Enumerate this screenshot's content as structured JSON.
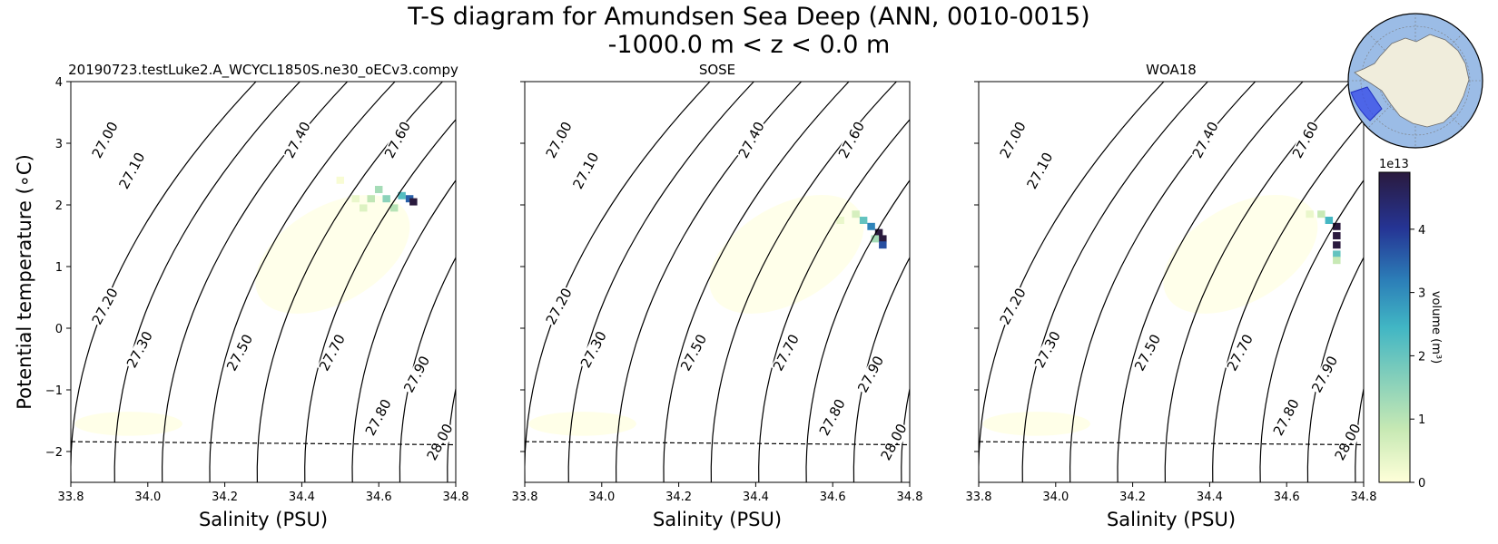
{
  "figure": {
    "title_line1": "T-S diagram for Amundsen Sea Deep (ANN, 0010-0015)",
    "title_line2": "-1000.0 m < z < 0.0 m"
  },
  "chart_data": [
    {
      "type": "heatmap",
      "title": "20190723.testLuke2.A_WCYCL1850S.ne30_oECv3.compy",
      "xlabel": "Salinity (PSU)",
      "ylabel": "Potential temperature (∘C)",
      "xlim": [
        33.8,
        34.8
      ],
      "ylim": [
        -2.5,
        4
      ],
      "xticks": [
        33.8,
        34.0,
        34.2,
        34.4,
        34.6,
        34.8
      ],
      "yticks": [
        -2,
        -1,
        0,
        1,
        2,
        3,
        4
      ],
      "freezing_line": {
        "style": "dashed",
        "points": [
          [
            33.8,
            -1.84
          ],
          [
            34.8,
            -1.89
          ]
        ]
      },
      "density_contour_labels": [
        "27.00",
        "27.10",
        "27.20",
        "27.30",
        "27.40",
        "27.50",
        "27.60",
        "27.70",
        "27.80",
        "27.90",
        "28.00"
      ],
      "cells": [
        {
          "s": 34.54,
          "t": 2.1,
          "v": 3000000000000.0
        },
        {
          "s": 34.58,
          "t": 2.1,
          "v": 9000000000000.0
        },
        {
          "s": 34.62,
          "t": 2.1,
          "v": 15000000000000.0
        },
        {
          "s": 34.66,
          "t": 2.15,
          "v": 22000000000000.0
        },
        {
          "s": 34.68,
          "t": 2.1,
          "v": 36000000000000.0
        },
        {
          "s": 34.69,
          "t": 2.05,
          "v": 49000000000000.0
        },
        {
          "s": 34.6,
          "t": 2.25,
          "v": 12000000000000.0
        },
        {
          "s": 34.56,
          "t": 1.95,
          "v": 5000000000000.0
        },
        {
          "s": 34.64,
          "t": 1.95,
          "v": 10000000000000.0
        },
        {
          "s": 34.5,
          "t": 2.4,
          "v": 1000000000000.0
        }
      ]
    },
    {
      "type": "heatmap",
      "title": "SOSE",
      "xlabel": "Salinity (PSU)",
      "ylabel": "",
      "xlim": [
        33.8,
        34.8
      ],
      "ylim": [
        -2.5,
        4
      ],
      "xticks": [
        33.8,
        34.0,
        34.2,
        34.4,
        34.6,
        34.8
      ],
      "yticks": [
        -2,
        -1,
        0,
        1,
        2,
        3,
        4
      ],
      "freezing_line": {
        "style": "dashed",
        "points": [
          [
            33.8,
            -1.84
          ],
          [
            34.8,
            -1.89
          ]
        ]
      },
      "density_contour_labels": [
        "27.00",
        "27.10",
        "27.20",
        "27.30",
        "27.40",
        "27.50",
        "27.60",
        "27.70",
        "27.80",
        "27.90",
        "28.00"
      ],
      "cells": [
        {
          "s": 34.66,
          "t": 1.85,
          "v": 6000000000000.0
        },
        {
          "s": 34.68,
          "t": 1.75,
          "v": 20000000000000.0
        },
        {
          "s": 34.7,
          "t": 1.65,
          "v": 32000000000000.0
        },
        {
          "s": 34.72,
          "t": 1.55,
          "v": 49000000000000.0
        },
        {
          "s": 34.73,
          "t": 1.45,
          "v": 49000000000000.0
        },
        {
          "s": 34.73,
          "t": 1.35,
          "v": 38000000000000.0
        },
        {
          "s": 34.71,
          "t": 1.45,
          "v": 12000000000000.0
        },
        {
          "s": 34.62,
          "t": 1.75,
          "v": 3000000000000.0
        }
      ]
    },
    {
      "type": "heatmap",
      "title": "WOA18",
      "xlabel": "Salinity (PSU)",
      "ylabel": "",
      "xlim": [
        33.8,
        34.8
      ],
      "ylim": [
        -2.5,
        4
      ],
      "xticks": [
        33.8,
        34.0,
        34.2,
        34.4,
        34.6,
        34.8
      ],
      "yticks": [
        -2,
        -1,
        0,
        1,
        2,
        3,
        4
      ],
      "freezing_line": {
        "style": "dashed",
        "points": [
          [
            33.8,
            -1.84
          ],
          [
            34.8,
            -1.89
          ]
        ]
      },
      "density_contour_labels": [
        "27.00",
        "27.10",
        "27.20",
        "27.30",
        "27.40",
        "27.50",
        "27.60",
        "27.70",
        "27.80",
        "27.90",
        "28.00"
      ],
      "cells": [
        {
          "s": 34.69,
          "t": 1.85,
          "v": 8000000000000.0
        },
        {
          "s": 34.71,
          "t": 1.75,
          "v": 24000000000000.0
        },
        {
          "s": 34.73,
          "t": 1.65,
          "v": 49000000000000.0
        },
        {
          "s": 34.73,
          "t": 1.5,
          "v": 49000000000000.0
        },
        {
          "s": 34.73,
          "t": 1.35,
          "v": 49000000000000.0
        },
        {
          "s": 34.73,
          "t": 1.2,
          "v": 20000000000000.0
        },
        {
          "s": 34.73,
          "t": 1.1,
          "v": 8000000000000.0
        },
        {
          "s": 34.66,
          "t": 1.85,
          "v": 3000000000000.0
        }
      ]
    }
  ],
  "colorbar": {
    "label": "volume (m³)",
    "exponent_label": "1e13",
    "ticks": [
      0,
      1,
      2,
      3,
      4
    ],
    "vmax": 4.9,
    "colormap_stops": [
      "#ffffd9",
      "#c7e9b4",
      "#7fcdbb",
      "#41b6c4",
      "#2c7fb8",
      "#253494",
      "#2a1a3e"
    ]
  },
  "inset_map": {
    "region": "Amundsen Sea Deep",
    "land_color": "#f0eddc",
    "ocean_color": "#9bbce6",
    "region_color": "#3348e8"
  }
}
